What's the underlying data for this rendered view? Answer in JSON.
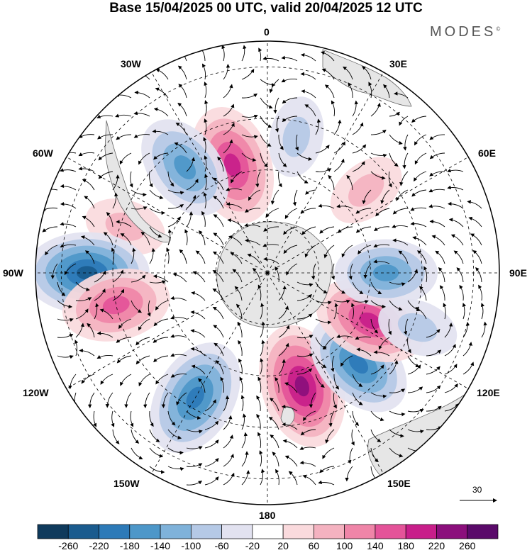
{
  "title": "Base 15/04/2025 00 UTC, valid 20/04/2025 12 UTC",
  "brand": "MODES",
  "brand_mark": "©",
  "longitude_labels": {
    "lon_0": "0",
    "lon_30e": "30E",
    "lon_60e": "60E",
    "lon_90e": "90E",
    "lon_120e": "120E",
    "lon_150e": "150E",
    "lon_180": "180",
    "lon_150w": "150W",
    "lon_120w": "120W",
    "lon_90w": "90W",
    "lon_60w": "60W",
    "lon_30w": "30W"
  },
  "vector_scale": {
    "value": "30"
  },
  "colorbar": {
    "ticks": [
      "-260",
      "-220",
      "-180",
      "-140",
      "-100",
      "-60",
      "-20",
      "20",
      "60",
      "100",
      "140",
      "180",
      "220",
      "260"
    ],
    "colors": [
      "#0f3a5c",
      "#1a5b8e",
      "#2d7ab8",
      "#4d97c9",
      "#7fb2da",
      "#b5c9e6",
      "#e2e2f0",
      "#ffffff",
      "#fadadd",
      "#f4b2c0",
      "#ef85a8",
      "#e45399",
      "#c81e8a",
      "#8b0f7c",
      "#5a0a6a"
    ]
  },
  "anomalies": [
    {
      "name": "low-30w",
      "lon": -18,
      "colat": 44,
      "value": 200
    },
    {
      "name": "high-45w",
      "lon": -38,
      "colat": 52,
      "value": -160
    },
    {
      "name": "high-75w",
      "lon": -72,
      "colat": 58,
      "value": 60
    },
    {
      "name": "trough-90w",
      "lon": -90,
      "colat": 70,
      "value": -220
    },
    {
      "name": "ridge-100w",
      "lon": -102,
      "colat": 60,
      "value": 160
    },
    {
      "name": "trough-150w",
      "lon": -150,
      "colat": 56,
      "value": -200
    },
    {
      "name": "ridge-160e",
      "lon": 163,
      "colat": 46,
      "value": 220
    },
    {
      "name": "trough-130e",
      "lon": 135,
      "colat": 50,
      "value": -180
    },
    {
      "name": "ridge-115e",
      "lon": 115,
      "colat": 44,
      "value": 180
    },
    {
      "name": "trough-90e",
      "lon": 90,
      "colat": 46,
      "value": -140
    },
    {
      "name": "ridge-50e",
      "lon": 50,
      "colat": 50,
      "value": 60
    },
    {
      "name": "trough-10e",
      "lon": 12,
      "colat": 54,
      "value": -60
    },
    {
      "name": "trough-110e",
      "lon": 110,
      "colat": 62,
      "value": -60
    }
  ]
}
